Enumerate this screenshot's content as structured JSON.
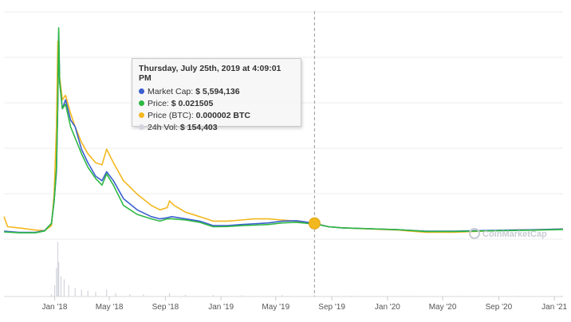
{
  "chart_data": {
    "type": "line",
    "title": "",
    "xlabel": "",
    "ylabel": "",
    "x_ticks": [
      "Jan '18",
      "May '18",
      "Sep '18",
      "Jan '19",
      "May '19",
      "Sep '19",
      "Jan '20",
      "May '20",
      "Sep '20",
      "Jan '21"
    ],
    "x_tick_dates": [
      "2018-01-01",
      "2018-05-01",
      "2018-09-01",
      "2019-01-01",
      "2019-05-01",
      "2019-09-01",
      "2020-01-01",
      "2020-05-01",
      "2020-09-01",
      "2021-01-01"
    ],
    "x_range": [
      "2017-09-12",
      "2021-01-20"
    ],
    "grid": true,
    "crosshair_date": "2019-07-25",
    "series": [
      {
        "name": "Market Cap",
        "color": "#3b5fce",
        "points": [
          [
            "2017-09-12",
            0.035
          ],
          [
            "2017-10-15",
            0.03
          ],
          [
            "2017-11-20",
            0.03
          ],
          [
            "2017-12-10",
            0.038
          ],
          [
            "2017-12-25",
            0.07
          ],
          [
            "2017-12-31",
            0.17
          ],
          [
            "2018-01-05",
            0.3
          ],
          [
            "2018-01-08",
            0.6
          ],
          [
            "2018-01-10",
            0.92
          ],
          [
            "2018-01-12",
            0.7
          ],
          [
            "2018-01-18",
            0.58
          ],
          [
            "2018-01-25",
            0.62
          ],
          [
            "2018-02-05",
            0.53
          ],
          [
            "2018-02-15",
            0.5
          ],
          [
            "2018-03-01",
            0.4
          ],
          [
            "2018-03-15",
            0.34
          ],
          [
            "2018-04-01",
            0.28
          ],
          [
            "2018-04-15",
            0.26
          ],
          [
            "2018-04-25",
            0.3
          ],
          [
            "2018-05-10",
            0.26
          ],
          [
            "2018-06-01",
            0.18
          ],
          [
            "2018-07-01",
            0.13
          ],
          [
            "2018-08-01",
            0.1
          ],
          [
            "2018-08-20",
            0.09
          ],
          [
            "2018-09-05",
            0.095
          ],
          [
            "2018-09-15",
            0.1
          ],
          [
            "2018-10-15",
            0.09
          ],
          [
            "2018-11-15",
            0.08
          ],
          [
            "2018-12-15",
            0.06
          ],
          [
            "2019-01-15",
            0.06
          ],
          [
            "2019-02-15",
            0.065
          ],
          [
            "2019-03-15",
            0.068
          ],
          [
            "2019-04-15",
            0.072
          ],
          [
            "2019-05-15",
            0.08
          ],
          [
            "2019-06-15",
            0.082
          ],
          [
            "2019-07-10",
            0.075
          ],
          [
            "2019-07-25",
            0.07
          ],
          [
            "2019-08-25",
            0.055
          ],
          [
            "2019-09-25",
            0.05
          ],
          [
            "2019-11-25",
            0.046
          ],
          [
            "2020-01-25",
            0.042
          ],
          [
            "2020-03-25",
            0.035
          ],
          [
            "2020-05-25",
            0.035
          ],
          [
            "2020-07-25",
            0.038
          ],
          [
            "2020-09-25",
            0.04
          ],
          [
            "2020-11-25",
            0.042
          ],
          [
            "2021-01-20",
            0.045
          ]
        ]
      },
      {
        "name": "Price",
        "color": "#2eb843",
        "points": [
          [
            "2017-09-12",
            0.032
          ],
          [
            "2017-10-15",
            0.028
          ],
          [
            "2017-11-20",
            0.028
          ],
          [
            "2017-12-10",
            0.036
          ],
          [
            "2017-12-25",
            0.07
          ],
          [
            "2017-12-31",
            0.17
          ],
          [
            "2018-01-05",
            0.32
          ],
          [
            "2018-01-08",
            0.62
          ],
          [
            "2018-01-10",
            0.94
          ],
          [
            "2018-01-12",
            0.7
          ],
          [
            "2018-01-18",
            0.58
          ],
          [
            "2018-01-25",
            0.6
          ],
          [
            "2018-02-05",
            0.5
          ],
          [
            "2018-02-15",
            0.45
          ],
          [
            "2018-03-01",
            0.38
          ],
          [
            "2018-03-15",
            0.32
          ],
          [
            "2018-04-01",
            0.27
          ],
          [
            "2018-04-15",
            0.24
          ],
          [
            "2018-04-25",
            0.29
          ],
          [
            "2018-05-10",
            0.24
          ],
          [
            "2018-06-01",
            0.15
          ],
          [
            "2018-07-01",
            0.11
          ],
          [
            "2018-08-01",
            0.09
          ],
          [
            "2018-08-20",
            0.08
          ],
          [
            "2018-09-05",
            0.09
          ],
          [
            "2018-09-15",
            0.09
          ],
          [
            "2018-10-15",
            0.085
          ],
          [
            "2018-11-15",
            0.075
          ],
          [
            "2018-12-15",
            0.055
          ],
          [
            "2019-01-15",
            0.056
          ],
          [
            "2019-02-15",
            0.06
          ],
          [
            "2019-03-15",
            0.062
          ],
          [
            "2019-04-15",
            0.065
          ],
          [
            "2019-05-15",
            0.072
          ],
          [
            "2019-06-15",
            0.075
          ],
          [
            "2019-07-10",
            0.07
          ],
          [
            "2019-07-25",
            0.068
          ],
          [
            "2019-08-25",
            0.055
          ],
          [
            "2019-09-25",
            0.05
          ],
          [
            "2019-11-25",
            0.046
          ],
          [
            "2020-01-25",
            0.042
          ],
          [
            "2020-03-25",
            0.034
          ],
          [
            "2020-05-25",
            0.034
          ],
          [
            "2020-07-25",
            0.036
          ],
          [
            "2020-09-25",
            0.038
          ],
          [
            "2020-11-25",
            0.04
          ],
          [
            "2021-01-20",
            0.043
          ]
        ]
      },
      {
        "name": "Price (BTC)",
        "color": "#f3b81f",
        "points": [
          [
            "2017-09-12",
            0.1
          ],
          [
            "2017-09-20",
            0.055
          ],
          [
            "2017-10-15",
            0.05
          ],
          [
            "2017-11-20",
            0.04
          ],
          [
            "2017-12-10",
            0.038
          ],
          [
            "2017-12-25",
            0.06
          ],
          [
            "2017-12-31",
            0.2
          ],
          [
            "2018-01-05",
            0.5
          ],
          [
            "2018-01-08",
            0.88
          ],
          [
            "2018-01-10",
            0.8
          ],
          [
            "2018-01-12",
            0.72
          ],
          [
            "2018-01-18",
            0.62
          ],
          [
            "2018-01-25",
            0.64
          ],
          [
            "2018-02-05",
            0.56
          ],
          [
            "2018-02-15",
            0.5
          ],
          [
            "2018-03-01",
            0.43
          ],
          [
            "2018-03-15",
            0.38
          ],
          [
            "2018-04-01",
            0.34
          ],
          [
            "2018-04-15",
            0.33
          ],
          [
            "2018-04-25",
            0.4
          ],
          [
            "2018-05-10",
            0.34
          ],
          [
            "2018-06-01",
            0.26
          ],
          [
            "2018-07-01",
            0.2
          ],
          [
            "2018-08-01",
            0.15
          ],
          [
            "2018-08-20",
            0.13
          ],
          [
            "2018-09-05",
            0.14
          ],
          [
            "2018-09-10",
            0.17
          ],
          [
            "2018-09-20",
            0.15
          ],
          [
            "2018-10-15",
            0.12
          ],
          [
            "2018-11-15",
            0.1
          ],
          [
            "2018-12-15",
            0.08
          ],
          [
            "2019-01-15",
            0.08
          ],
          [
            "2019-02-15",
            0.085
          ],
          [
            "2019-03-15",
            0.09
          ],
          [
            "2019-04-15",
            0.09
          ],
          [
            "2019-05-15",
            0.085
          ],
          [
            "2019-06-15",
            0.08
          ],
          [
            "2019-07-10",
            0.072
          ],
          [
            "2019-07-25",
            0.07
          ],
          [
            "2019-08-25",
            0.055
          ],
          [
            "2019-09-25",
            0.05
          ],
          [
            "2019-11-25",
            0.045
          ],
          [
            "2020-01-25",
            0.04
          ],
          [
            "2020-03-25",
            0.03
          ],
          [
            "2020-05-25",
            0.03
          ],
          [
            "2020-07-25",
            0.035
          ],
          [
            "2020-09-25",
            0.04
          ],
          [
            "2020-11-25",
            0.042
          ],
          [
            "2021-01-20",
            0.045
          ]
        ]
      },
      {
        "name": "24h Vol",
        "color": "#d4d4de",
        "type": "bar",
        "points": [
          [
            "2017-12-25",
            0.04
          ],
          [
            "2018-01-01",
            0.2
          ],
          [
            "2018-01-05",
            0.5
          ],
          [
            "2018-01-08",
            0.95
          ],
          [
            "2018-01-10",
            0.6
          ],
          [
            "2018-01-15",
            0.35
          ],
          [
            "2018-01-22",
            0.3
          ],
          [
            "2018-02-01",
            0.2
          ],
          [
            "2018-02-15",
            0.15
          ],
          [
            "2018-03-01",
            0.12
          ],
          [
            "2018-03-15",
            0.1
          ],
          [
            "2018-04-01",
            0.08
          ],
          [
            "2018-04-25",
            0.12
          ],
          [
            "2018-05-15",
            0.06
          ],
          [
            "2018-06-15",
            0.04
          ],
          [
            "2018-07-15",
            0.035
          ],
          [
            "2018-09-10",
            0.06
          ],
          [
            "2018-10-15",
            0.03
          ],
          [
            "2018-12-15",
            0.025
          ],
          [
            "2019-02-15",
            0.02
          ],
          [
            "2019-05-15",
            0.025
          ],
          [
            "2019-07-25",
            0.02
          ],
          [
            "2019-10-15",
            0.015
          ],
          [
            "2020-02-15",
            0.012
          ],
          [
            "2020-06-15",
            0.01
          ],
          [
            "2020-10-15",
            0.012
          ],
          [
            "2021-01-15",
            0.012
          ]
        ]
      }
    ]
  },
  "tooltip": {
    "title": "Thursday, July 25th, 2019 at 4:09:01 PM",
    "rows": [
      {
        "label": "Market Cap:",
        "value": "$ 5,594,136",
        "color": "#3b5fce"
      },
      {
        "label": "Price:",
        "value": "$ 0.021505",
        "color": "#2eb843"
      },
      {
        "label": "Price (BTC):",
        "value": "0.000002 BTC",
        "color": "#f3b81f"
      },
      {
        "label": "24h Vol:",
        "value": "$ 154,403",
        "color": "#d4d4de"
      }
    ]
  },
  "watermark": {
    "text": "CoinMarketCap",
    "icon": "coinmarketcap-logo-icon"
  }
}
